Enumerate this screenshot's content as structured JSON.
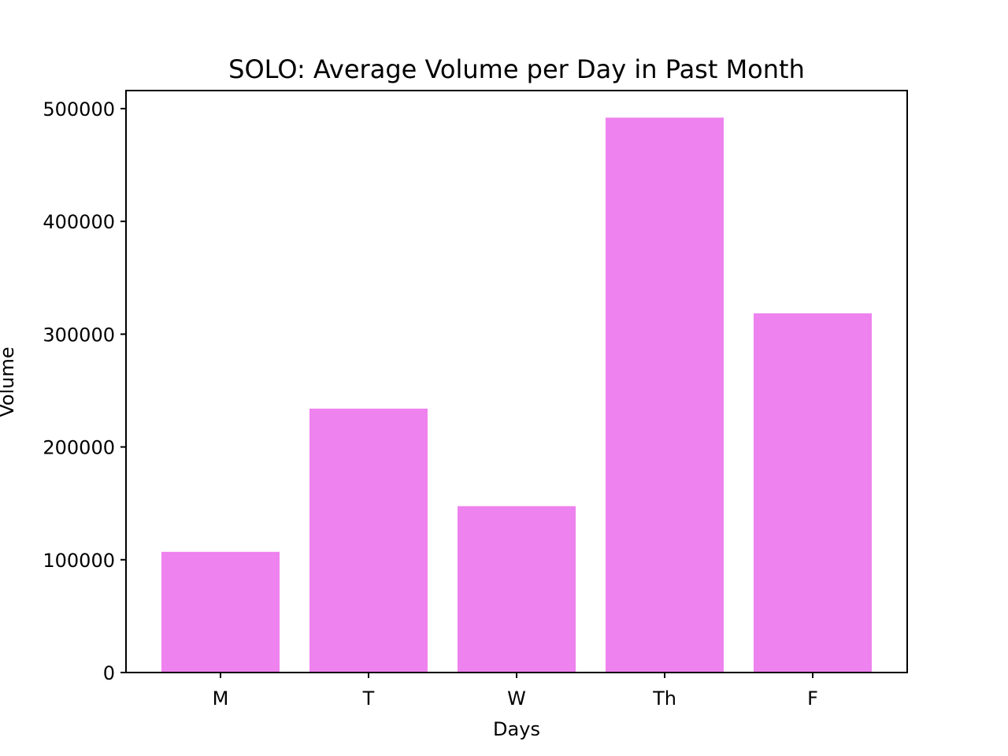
{
  "chart_data": {
    "type": "bar",
    "title": "SOLO: Average Volume per Day in Past Month",
    "xlabel": "Days",
    "ylabel": "Volume",
    "categories": [
      "M",
      "T",
      "W",
      "Th",
      "F"
    ],
    "values": [
      107000,
      234000,
      147500,
      492000,
      318500
    ],
    "ylim": [
      0,
      516000
    ],
    "yticks": [
      0,
      100000,
      200000,
      300000,
      400000,
      500000
    ],
    "ytick_labels": [
      "0",
      "100000",
      "200000",
      "300000",
      "400000",
      "500000"
    ],
    "bar_color": "#ee82ee",
    "grid": false,
    "legend": "none"
  }
}
